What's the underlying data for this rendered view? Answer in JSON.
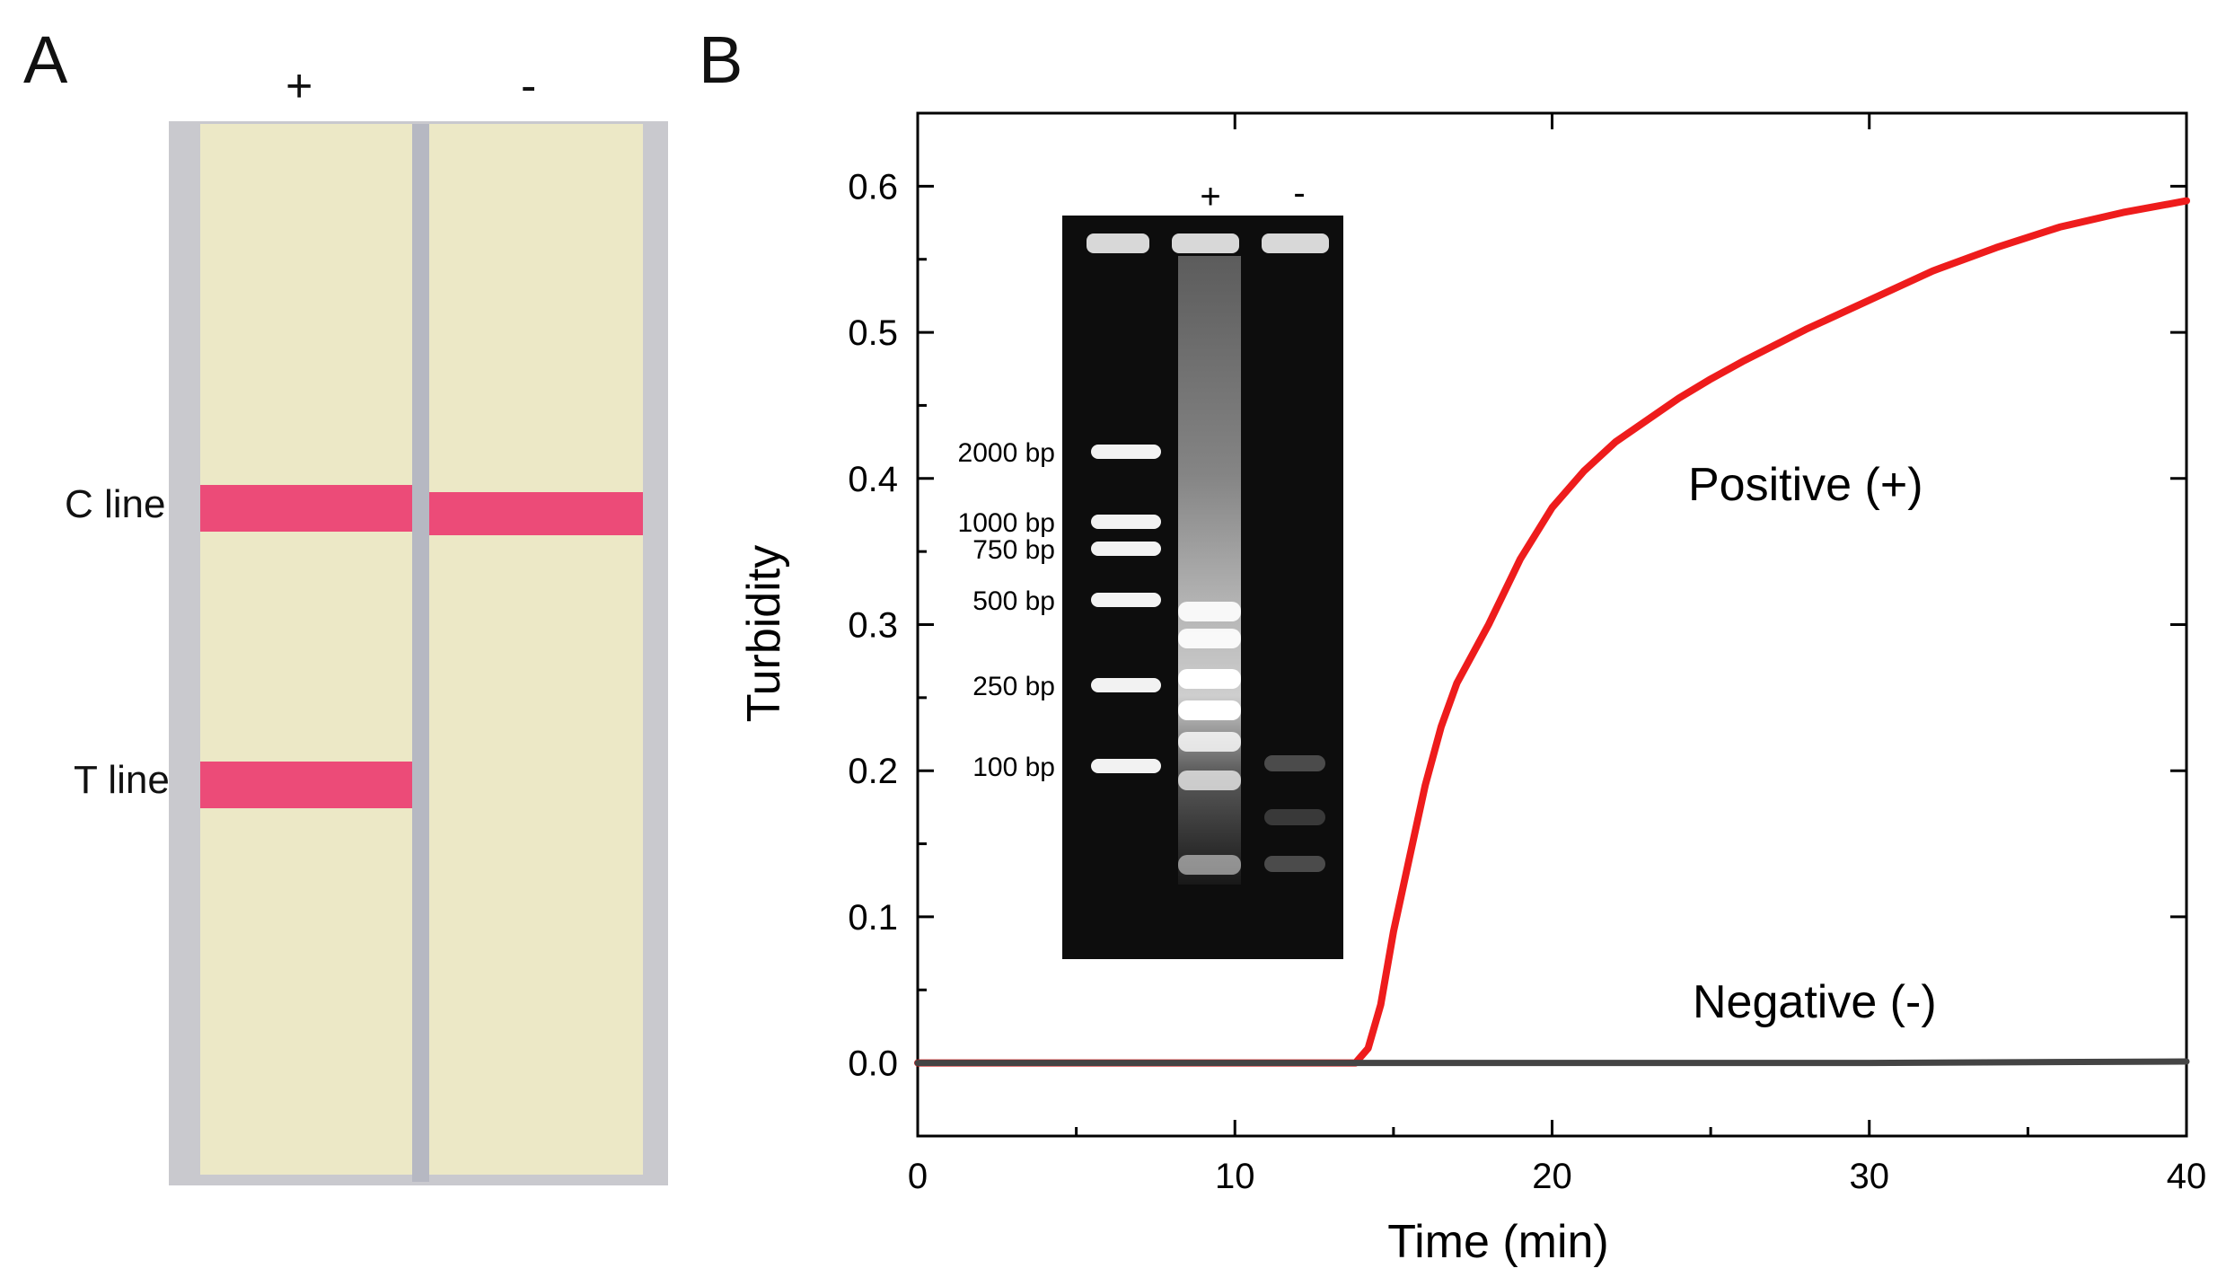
{
  "panel_a": {
    "letter": "A",
    "lane_plus": "+",
    "lane_minus": "-",
    "c_line_label": "C line",
    "t_line_label": "T line",
    "strip_color": "#ece8c6",
    "band_color": "#ec2f6a"
  },
  "panel_b": {
    "letter": "B"
  },
  "gel_inset": {
    "lane_plus": "+",
    "lane_minus": "-",
    "ladder": [
      {
        "label": "2000 bp",
        "bp": 2000
      },
      {
        "label": "1000 bp",
        "bp": 1000
      },
      {
        "label": "750 bp",
        "bp": 750
      },
      {
        "label": "500 bp",
        "bp": 500
      },
      {
        "label": "250 bp",
        "bp": 250
      },
      {
        "label": "100 bp",
        "bp": 100
      }
    ]
  },
  "chart_data": {
    "type": "line",
    "title": "",
    "xlabel": "Time (min)",
    "ylabel": "Turbidity",
    "xlim": [
      0,
      40
    ],
    "ylim": [
      -0.05,
      0.65
    ],
    "x_ticks": [
      0,
      10,
      20,
      30,
      40
    ],
    "y_ticks": [
      0.0,
      0.1,
      0.2,
      0.3,
      0.4,
      0.5,
      0.6
    ],
    "y_tick_labels": [
      "0.0",
      "0.1",
      "0.2",
      "0.3",
      "0.4",
      "0.5",
      "0.6"
    ],
    "grid": false,
    "series": [
      {
        "name": "Positive (+)",
        "color": "#ee1c1c",
        "x": [
          0,
          13.0,
          13.8,
          14.2,
          14.6,
          15.0,
          15.5,
          16.0,
          16.5,
          17.0,
          18.0,
          19.0,
          20.0,
          21.0,
          22.0,
          23.0,
          24.0,
          25.0,
          26.0,
          28.0,
          30.0,
          32.0,
          34.0,
          36.0,
          38.0,
          40.0
        ],
        "y": [
          0.0,
          0.0,
          0.0,
          0.01,
          0.04,
          0.09,
          0.14,
          0.19,
          0.23,
          0.26,
          0.3,
          0.345,
          0.38,
          0.405,
          0.425,
          0.44,
          0.455,
          0.468,
          0.48,
          0.502,
          0.522,
          0.542,
          0.558,
          0.572,
          0.582,
          0.59
        ]
      },
      {
        "name": "Negative (-)",
        "color": "#444444",
        "x": [
          0,
          10,
          20,
          30,
          40
        ],
        "y": [
          0.0,
          0.0,
          0.0,
          0.0,
          0.001
        ]
      }
    ],
    "annotations": [
      "Positive (+)",
      "Negative (-)"
    ]
  }
}
